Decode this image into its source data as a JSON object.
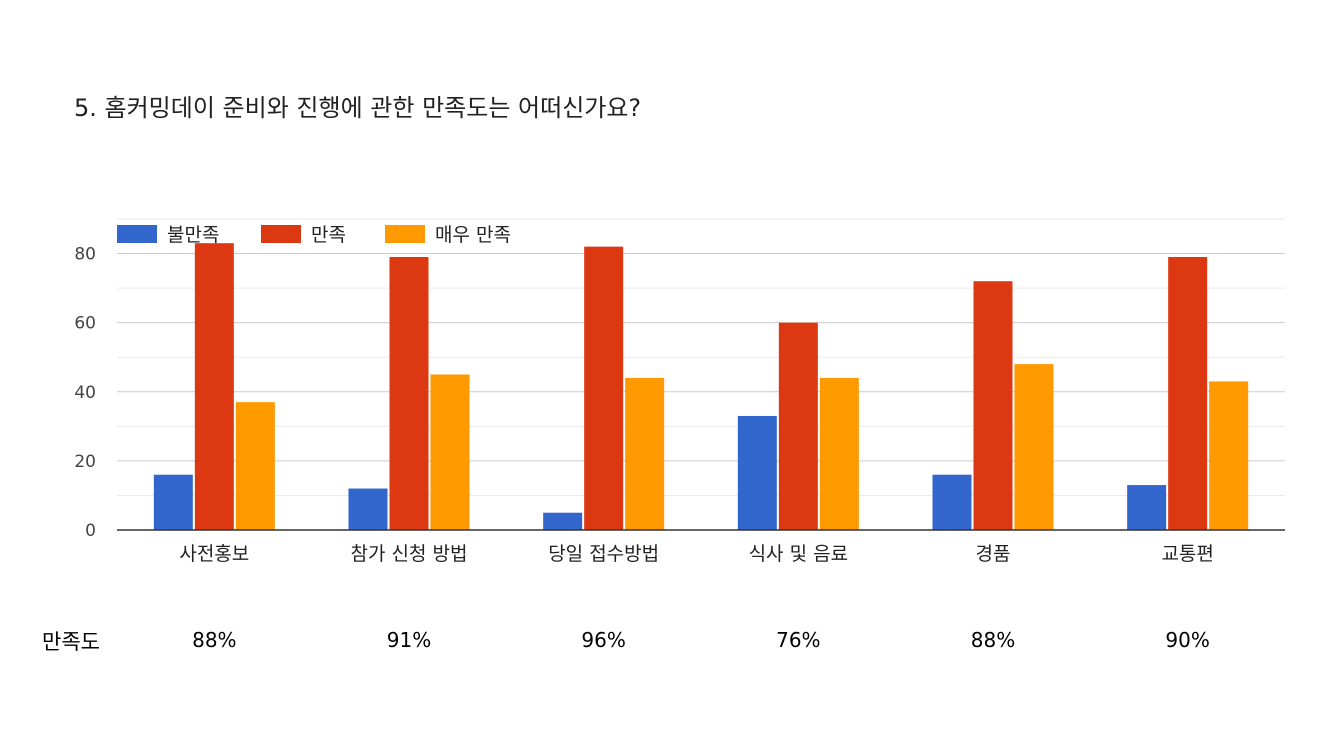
{
  "title": "5. 홈커밍데이 준비와 진행에 관한 만족도는 어떠신가요?",
  "chart_data": {
    "type": "bar",
    "title": "5. 홈커밍데이 준비와 진행에 관한 만족도는 어떠신가요?",
    "categories": [
      "사전홍보",
      "참가 신청 방법",
      "당일 접수방법",
      "식사 및 음료",
      "경품",
      "교통편"
    ],
    "series": [
      {
        "name": "불만족",
        "color": "#3366cc",
        "values": [
          16,
          12,
          5,
          33,
          16,
          13
        ]
      },
      {
        "name": "만족",
        "color": "#dc3912",
        "values": [
          83,
          79,
          82,
          60,
          72,
          79
        ]
      },
      {
        "name": "매우 만족",
        "color": "#ff9900",
        "values": [
          37,
          45,
          44,
          44,
          48,
          43
        ]
      }
    ],
    "ylim": [
      0,
      90
    ],
    "yticks": [
      0,
      20,
      40,
      60,
      80
    ],
    "xlabel": "",
    "ylabel": "",
    "grid": true,
    "legend": "top-left"
  },
  "satisfaction": {
    "label": "만족도",
    "values": [
      "88%",
      "91%",
      "96%",
      "76%",
      "88%",
      "90%"
    ]
  }
}
